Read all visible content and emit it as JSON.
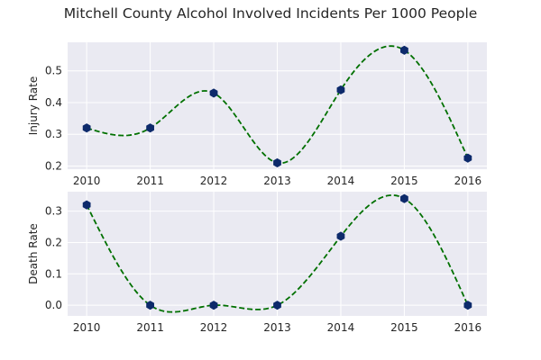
{
  "title": "Mitchell County Alcohol Involved Incidents Per 1000 People",
  "colors": {
    "background": "#eaeaf2",
    "grid": "#ffffff",
    "line": "#007000",
    "marker": "#0d2a6b"
  },
  "chart_data": [
    {
      "type": "line",
      "ylabel": "Injury Rate",
      "x": [
        2010,
        2011,
        2012,
        2013,
        2014,
        2015,
        2016
      ],
      "values": [
        0.32,
        0.32,
        0.43,
        0.21,
        0.44,
        0.565,
        0.225
      ],
      "xlim": [
        2009.7,
        2016.3
      ],
      "ylim": [
        0.19,
        0.59
      ],
      "yticks": [
        "0.2",
        "0.3",
        "0.4",
        "0.5"
      ],
      "xticks": [
        "2010",
        "2011",
        "2012",
        "2013",
        "2014",
        "2015",
        "2016"
      ],
      "grid": true,
      "line_style": "dashed",
      "smoothed": true
    },
    {
      "type": "line",
      "ylabel": "Death Rate",
      "x": [
        2010,
        2011,
        2012,
        2013,
        2014,
        2015,
        2016
      ],
      "values": [
        0.32,
        0.0,
        0.0,
        0.0,
        0.22,
        0.34,
        0.0
      ],
      "xlim": [
        2009.7,
        2016.3
      ],
      "ylim": [
        -0.034,
        0.362
      ],
      "yticks": [
        "0.0",
        "0.1",
        "0.2",
        "0.3"
      ],
      "xticks": [
        "2010",
        "2011",
        "2012",
        "2013",
        "2014",
        "2015",
        "2016"
      ],
      "grid": true,
      "line_style": "dashed",
      "smoothed": true
    }
  ]
}
